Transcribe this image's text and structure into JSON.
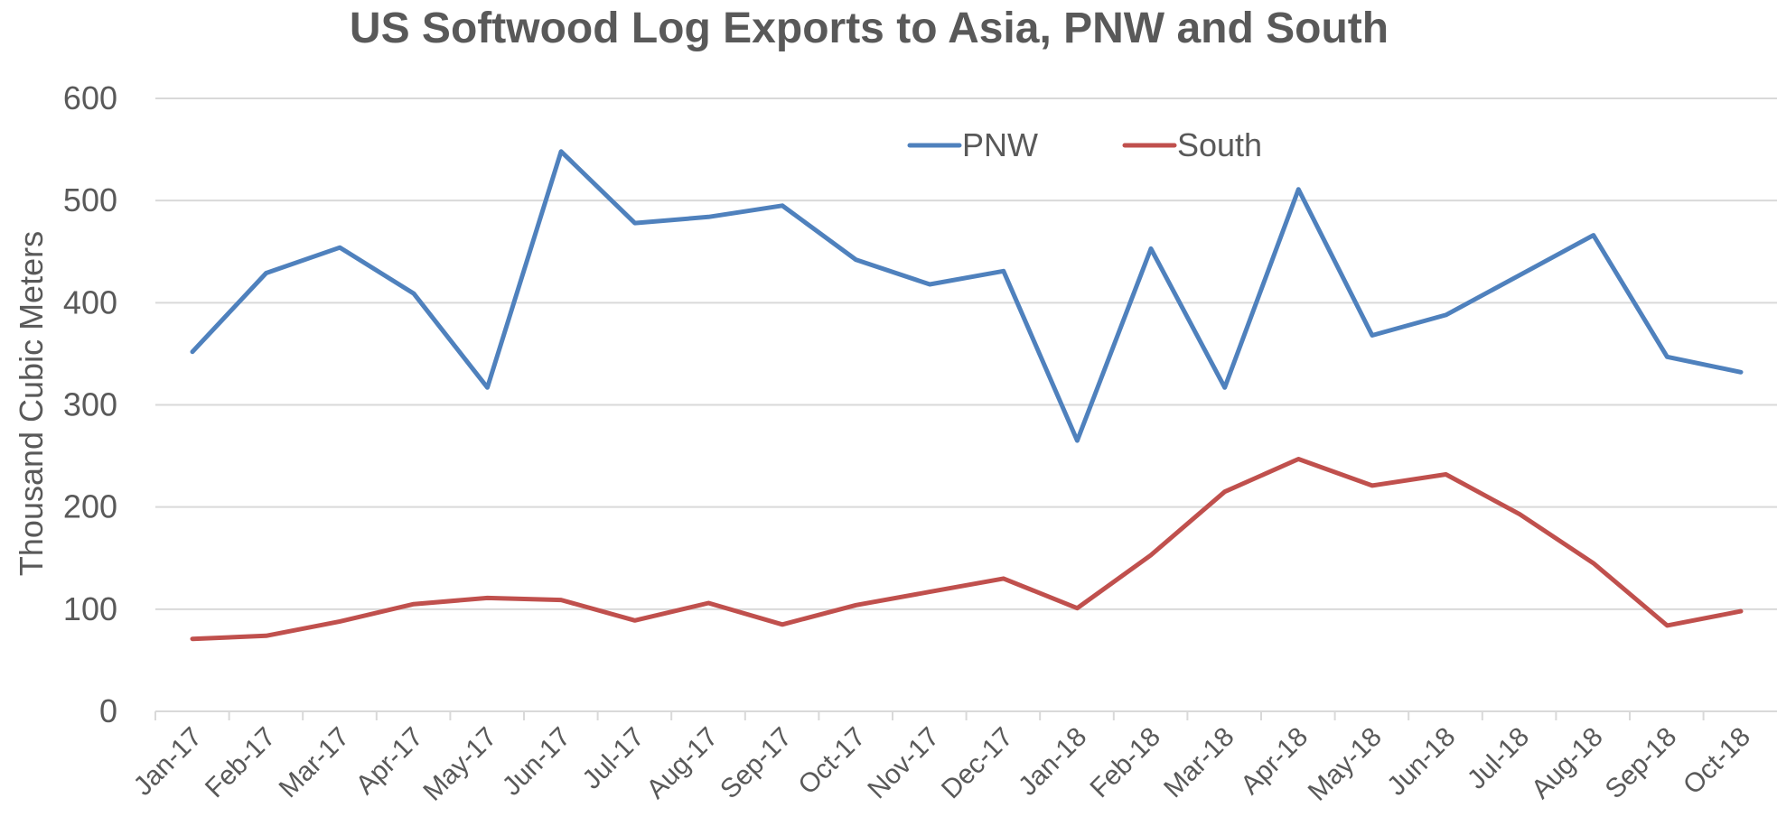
{
  "chart_data": {
    "type": "line",
    "title": "US Softwood Log Exports to Asia, PNW and South",
    "xlabel": "",
    "ylabel": "Thousand Cubic Meters",
    "ylim": [
      0,
      600
    ],
    "yticks": [
      "0",
      "100",
      "200",
      "300",
      "400",
      "500",
      "600"
    ],
    "grid": true,
    "legend_position": "top-center",
    "categories": [
      "Jan-17",
      "Feb-17",
      "Mar-17",
      "Apr-17",
      "May-17",
      "Jun-17",
      "Jul-17",
      "Aug-17",
      "Sep-17",
      "Oct-17",
      "Nov-17",
      "Dec-17",
      "Jan-18",
      "Feb-18",
      "Mar-18",
      "Apr-18",
      "May-18",
      "Jun-18",
      "Jul-18",
      "Aug-18",
      "Sep-18",
      "Oct-18"
    ],
    "series": [
      {
        "name": "PNW",
        "color": "#4f81bd",
        "values": [
          352,
          429,
          454,
          409,
          317,
          548,
          478,
          484,
          495,
          442,
          418,
          431,
          265,
          453,
          317,
          511,
          368,
          388,
          427,
          466,
          347,
          332
        ]
      },
      {
        "name": "South",
        "color": "#c0504d",
        "values": [
          71,
          74,
          88,
          105,
          111,
          109,
          89,
          106,
          85,
          104,
          117,
          130,
          101,
          153,
          215,
          247,
          221,
          232,
          193,
          145,
          84,
          98
        ]
      }
    ]
  }
}
